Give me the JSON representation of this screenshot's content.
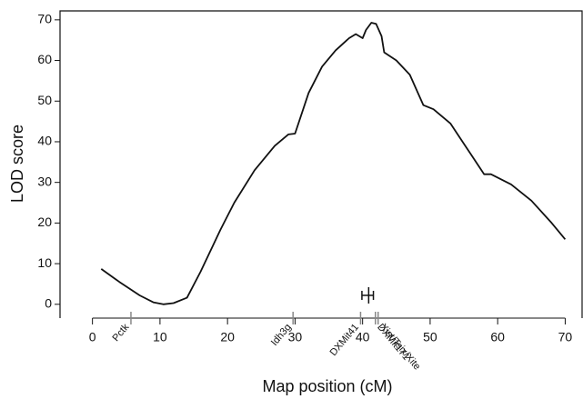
{
  "chart_data": {
    "type": "line",
    "xlabel": "Map position (cM)",
    "ylabel": "LOD score",
    "x": [
      1.3,
      4,
      7,
      9,
      10.5,
      12,
      14,
      16,
      18,
      19,
      21,
      24,
      27,
      29,
      30,
      32,
      34,
      36,
      38,
      39,
      40,
      40.5,
      41.3,
      42,
      42.8,
      43.2,
      45,
      47,
      49,
      50.5,
      53,
      56,
      58,
      59,
      62,
      65,
      68,
      70
    ],
    "series": [
      {
        "color": "#111111",
        "values": [
          8.7,
          5.5,
          2.2,
          0.5,
          0,
          0.3,
          1.6,
          8,
          15,
          18.5,
          25,
          33,
          39,
          41.8,
          42,
          52,
          58.5,
          62.5,
          65.5,
          66.5,
          65.5,
          67.5,
          69.3,
          69,
          66,
          62,
          60,
          56.5,
          49,
          48,
          44.5,
          37,
          32,
          32,
          29.5,
          25.5,
          20,
          16
        ]
      }
    ],
    "xlim": [
      -4.8,
      72.5
    ],
    "ylim": [
      -3.4,
      72.2
    ],
    "xticks": [
      0,
      10,
      20,
      30,
      40,
      50,
      60,
      70
    ],
    "yticks": [
      0,
      10,
      20,
      30,
      40,
      50,
      60,
      70
    ],
    "markers": [
      {
        "name": "Pctk",
        "position": 5.7,
        "side": "left"
      },
      {
        "name": "Idh3g",
        "position": 29.7,
        "side": "left"
      },
      {
        "name": "DXMit41",
        "position": 39.7,
        "side": "left"
      },
      {
        "name": "DXMit171",
        "position": 41.9,
        "side": "right"
      },
      {
        "name": "Xist/Tsix/Xite",
        "position": 42.3,
        "side": "right"
      }
    ],
    "interval": {
      "low": 39.9,
      "high": 41.6,
      "peak": 40.9,
      "y": 2.2
    }
  }
}
